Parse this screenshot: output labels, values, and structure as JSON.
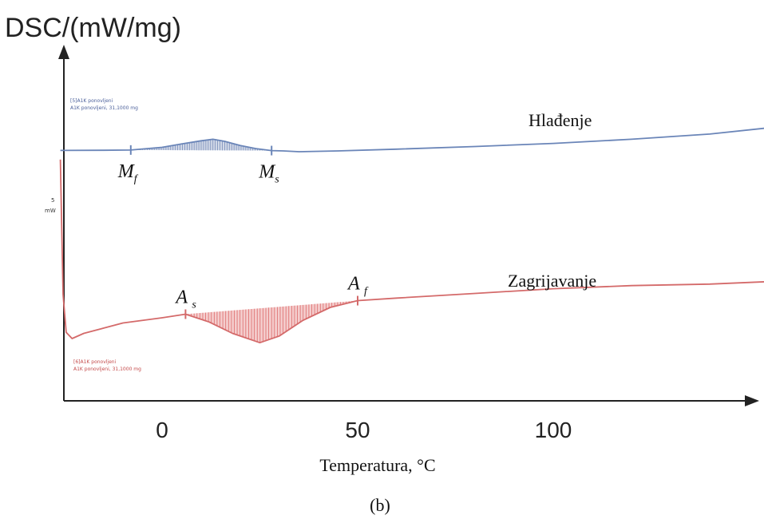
{
  "chart_data": {
    "type": "line",
    "title": "",
    "ylabel": "DSC/(mW/mg)",
    "xlabel": "Temperatura, °C",
    "caption": "(b)",
    "xlim": [
      -26,
      160
    ],
    "x_ticks": [
      0,
      50,
      100
    ],
    "y_scale_text": [
      "5",
      "mW"
    ],
    "grid": false,
    "series": [
      {
        "name": "Hlađenje",
        "color": "#6a85b8",
        "legend_lines": [
          "[5]A1K ponovljeni",
          "A1K ponovljeni, 31,1000 mg"
        ],
        "x": [
          -26,
          -15,
          -8,
          0,
          5,
          10,
          13,
          16,
          20,
          24,
          28,
          31,
          35,
          45,
          60,
          80,
          100,
          120,
          140,
          155,
          157,
          157.5
        ],
        "y": [
          0.25,
          0.27,
          0.33,
          0.85,
          1.5,
          2.1,
          2.4,
          2.0,
          1.2,
          0.6,
          0.22,
          0.15,
          0.0,
          0.15,
          0.5,
          1.0,
          1.6,
          2.4,
          3.4,
          4.6,
          3.2,
          -19.0
        ]
      },
      {
        "name": "Zagrijavanje",
        "color": "#d46a6a",
        "legend_lines": [
          "[6]A1K ponovljeni",
          "A1K ponovljeni, 31,1000 mg"
        ],
        "x": [
          -26,
          -25.3,
          -24.5,
          -23,
          -20,
          -15,
          -10,
          0,
          6,
          12,
          18,
          25,
          30,
          36,
          43,
          50,
          60,
          80,
          100,
          120,
          140,
          156,
          157.5
        ],
        "y": [
          -1.5,
          -27.5,
          -34.8,
          -36.0,
          -35.0,
          -34.0,
          -33.0,
          -32.0,
          -31.3,
          -32.8,
          -35.0,
          -36.8,
          -35.5,
          -32.5,
          -30.0,
          -28.7,
          -28.2,
          -27.3,
          -26.4,
          -25.8,
          -25.5,
          -25.0,
          -18.5
        ]
      }
    ],
    "annotations": [
      {
        "series": 0,
        "main": "M",
        "sub": "f",
        "x": -8
      },
      {
        "series": 0,
        "main": "M",
        "sub": "s",
        "x": 28
      },
      {
        "series": 1,
        "main": "A",
        "sub": "s",
        "x": 6
      },
      {
        "series": 1,
        "main": "A",
        "sub": "f",
        "x": 50
      }
    ],
    "shaded": [
      {
        "series": 0,
        "x_from": -8,
        "x_to": 28,
        "color": "#5a73aa"
      },
      {
        "series": 1,
        "x_from": 6,
        "x_to": 50,
        "color": "#d64a4a"
      }
    ]
  }
}
